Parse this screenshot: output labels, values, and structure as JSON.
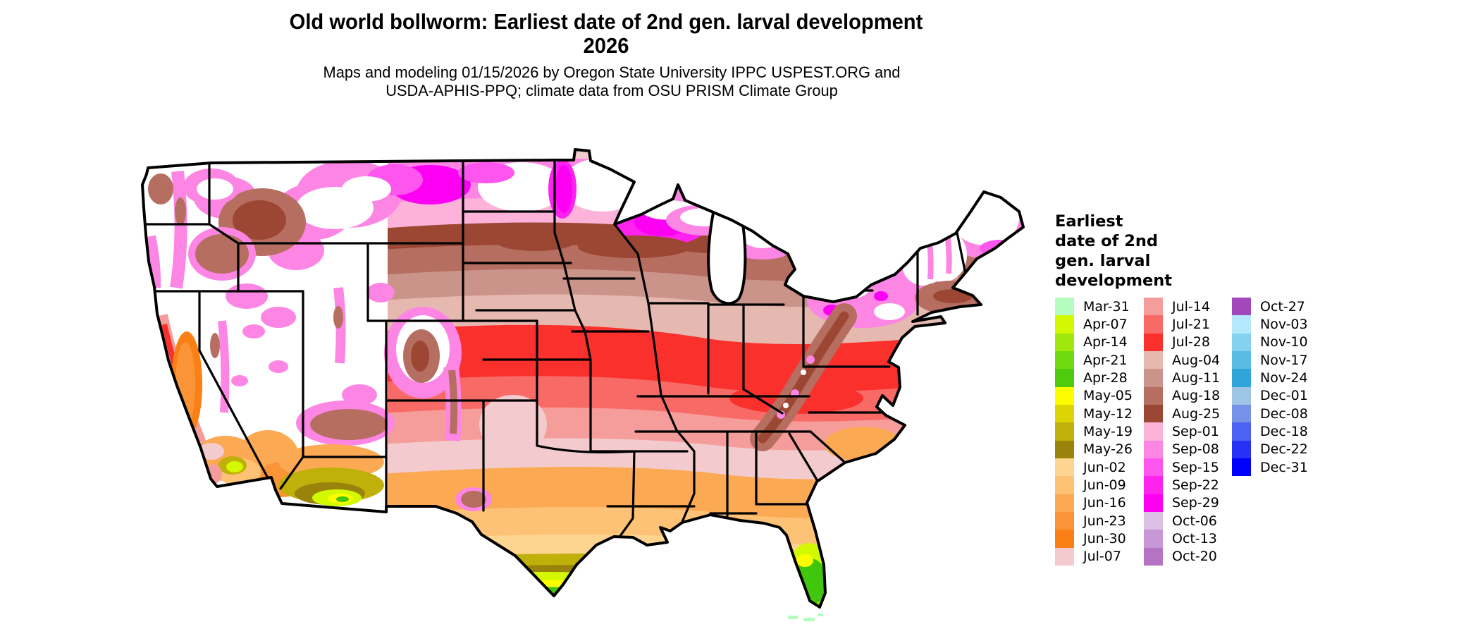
{
  "title": {
    "line1": "Old world bollworm: Earliest date of 2nd gen. larval development",
    "line2": "2026"
  },
  "subtitle": {
    "line1": "Maps and modeling 01/15/2026 by Oregon State University IPPC USPEST.ORG and",
    "line2": "USDA-APHIS-PPQ; climate data from OSU PRISM Climate Group"
  },
  "map": {
    "area": "Contiguous United States",
    "kind": "choropleth raster map of earliest date of 2nd generation larval development"
  },
  "legend": {
    "title_lines": [
      "Earliest",
      "date of 2nd",
      "gen. larval",
      "development"
    ],
    "columns": [
      {
        "entries": [
          {
            "label": "Mar-31",
            "color": "#b4fdbe"
          },
          {
            "label": "Apr-07",
            "color": "#d3f902"
          },
          {
            "label": "Apr-14",
            "color": "#a0e80b"
          },
          {
            "label": "Apr-21",
            "color": "#70da11"
          },
          {
            "label": "Apr-28",
            "color": "#4ecb0d"
          },
          {
            "label": "May-05",
            "color": "#fdfd00"
          },
          {
            "label": "May-12",
            "color": "#dcd405"
          },
          {
            "label": "May-19",
            "color": "#c0b00a"
          },
          {
            "label": "May-26",
            "color": "#9a830b"
          },
          {
            "label": "Jun-02",
            "color": "#fdd591"
          },
          {
            "label": "Jun-09",
            "color": "#fdc275"
          },
          {
            "label": "Jun-16",
            "color": "#fbaa53"
          },
          {
            "label": "Jun-23",
            "color": "#fa9436"
          },
          {
            "label": "Jun-30",
            "color": "#fa8015"
          },
          {
            "label": "Jul-07",
            "color": "#f3cbce"
          }
        ]
      },
      {
        "entries": [
          {
            "label": "Jul-14",
            "color": "#f59d9b"
          },
          {
            "label": "Jul-21",
            "color": "#f86a66"
          },
          {
            "label": "Jul-28",
            "color": "#fa302d"
          },
          {
            "label": "Aug-04",
            "color": "#e6b9b0"
          },
          {
            "label": "Aug-11",
            "color": "#cb948a"
          },
          {
            "label": "Aug-18",
            "color": "#b56e60"
          },
          {
            "label": "Aug-25",
            "color": "#9c4733"
          },
          {
            "label": "Sep-01",
            "color": "#fdb3d9"
          },
          {
            "label": "Sep-08",
            "color": "#fd85e3"
          },
          {
            "label": "Sep-15",
            "color": "#fd55ee"
          },
          {
            "label": "Sep-22",
            "color": "#fd22ee"
          },
          {
            "label": "Sep-29",
            "color": "#fd00f3"
          },
          {
            "label": "Oct-06",
            "color": "#ddc0e6"
          },
          {
            "label": "Oct-13",
            "color": "#c897d5"
          },
          {
            "label": "Oct-20",
            "color": "#b573c4"
          }
        ]
      },
      {
        "entries": [
          {
            "label": "Oct-27",
            "color": "#a348bc"
          },
          {
            "label": "Nov-03",
            "color": "#b3e8fd"
          },
          {
            "label": "Nov-10",
            "color": "#87d1f0"
          },
          {
            "label": "Nov-17",
            "color": "#5bbce3"
          },
          {
            "label": "Nov-24",
            "color": "#30a5d8"
          },
          {
            "label": "Dec-01",
            "color": "#9fc5e5"
          },
          {
            "label": "Dec-08",
            "color": "#7591e8"
          },
          {
            "label": "Dec-18",
            "color": "#4d62f2"
          },
          {
            "label": "Dec-22",
            "color": "#2631f5"
          },
          {
            "label": "Dec-31",
            "color": "#0000fd"
          }
        ]
      }
    ]
  }
}
